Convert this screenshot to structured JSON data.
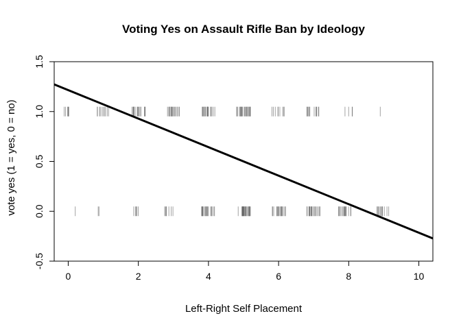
{
  "chart_data": {
    "type": "scatter",
    "title": "Voting Yes on Assault Rifle Ban by Ideology",
    "xlabel": "Left-Right Self Placement",
    "ylabel": "vote yes (1 = yes, 0 = no)",
    "xlim": [
      -0.4,
      10.4
    ],
    "ylim": [
      -0.5,
      1.5
    ],
    "x_ticks": [
      0,
      2,
      4,
      6,
      8,
      10
    ],
    "x_tick_labels": [
      "0",
      "2",
      "4",
      "6",
      "8",
      "10"
    ],
    "y_ticks": [
      -0.5,
      0.0,
      0.5,
      1.0,
      1.5
    ],
    "y_tick_labels": [
      "-0.5",
      "0.0",
      "0.5",
      "1.0",
      "1.5"
    ],
    "grid": false,
    "rug_color": "#555555",
    "line_color": "#000000",
    "series": [
      {
        "kind": "jitter-rug",
        "y": 1,
        "clusters": [
          {
            "x": 0,
            "spread": 0.15,
            "count": 6
          },
          {
            "x": 1,
            "spread": 0.2,
            "count": 10
          },
          {
            "x": 2,
            "spread": 0.2,
            "count": 18
          },
          {
            "x": 3,
            "spread": 0.2,
            "count": 18
          },
          {
            "x": 4,
            "spread": 0.2,
            "count": 20
          },
          {
            "x": 5,
            "spread": 0.2,
            "count": 24
          },
          {
            "x": 6,
            "spread": 0.2,
            "count": 9
          },
          {
            "x": 7,
            "spread": 0.2,
            "count": 12
          },
          {
            "x": 8,
            "spread": 0.15,
            "count": 4
          },
          {
            "x": 8.9,
            "spread": 0.0,
            "count": 1
          }
        ]
      },
      {
        "kind": "jitter-rug",
        "y": 0,
        "clusters": [
          {
            "x": 0.2,
            "spread": 0.0,
            "count": 1
          },
          {
            "x": 0.9,
            "spread": 0.05,
            "count": 2
          },
          {
            "x": 2,
            "spread": 0.15,
            "count": 5
          },
          {
            "x": 2.9,
            "spread": 0.15,
            "count": 7
          },
          {
            "x": 4,
            "spread": 0.2,
            "count": 20
          },
          {
            "x": 5,
            "spread": 0.2,
            "count": 26
          },
          {
            "x": 6,
            "spread": 0.2,
            "count": 18
          },
          {
            "x": 7,
            "spread": 0.2,
            "count": 20
          },
          {
            "x": 7.9,
            "spread": 0.2,
            "count": 16
          },
          {
            "x": 9,
            "spread": 0.2,
            "count": 12
          }
        ]
      },
      {
        "kind": "fitted-line",
        "intercept": 1.215,
        "slope": -0.143
      }
    ]
  }
}
